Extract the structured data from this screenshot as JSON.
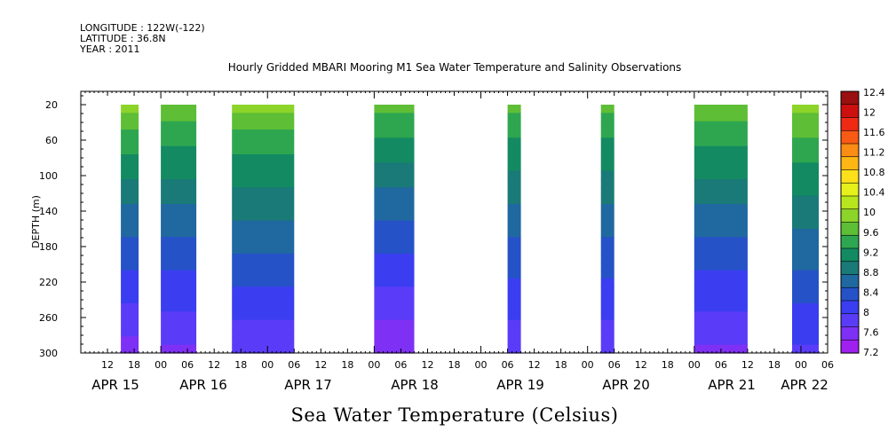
{
  "header": {
    "longitude": "LONGITUDE : 122W(-122)",
    "latitude": "LATITUDE : 36.8N",
    "year": "YEAR : 2011"
  },
  "chart_data": {
    "type": "heatmap",
    "title": "Hourly Gridded MBARI Mooring M1 Sea Water Temperature and Salinity Observations",
    "xlabel": "",
    "ylabel": "DEPTH (m)",
    "colorbar_title": "Sea Water Temperature (Celsius)",
    "y_ticks": [
      20,
      60,
      100,
      140,
      180,
      220,
      260,
      300
    ],
    "ylim": [
      300,
      5
    ],
    "x_hour_ticks": [
      "12",
      "18",
      "00",
      "06",
      "12",
      "18",
      "00",
      "06",
      "12",
      "18",
      "00",
      "06",
      "12",
      "18",
      "00",
      "06",
      "12",
      "18",
      "00",
      "06",
      "12",
      "18",
      "00",
      "06",
      "12",
      "18",
      "00",
      "06"
    ],
    "x_day_labels": [
      "APR 15",
      "APR 16",
      "APR 17",
      "APR 18",
      "APR 19",
      "APR 20",
      "APR 21",
      "APR 22"
    ],
    "x_range_hours": [
      6,
      174
    ],
    "colorbar_levels": [
      "12.4",
      "12",
      "11.6",
      "11.2",
      "10.8",
      "10.4",
      "10",
      "9.6",
      "9.2",
      "8.8",
      "8.4",
      "8",
      "7.6",
      "7.2"
    ],
    "colorbar_colors": [
      "#9a0f0f",
      "#cc1010",
      "#ee2a14",
      "#f95a14",
      "#fb8c14",
      "#fdb614",
      "#fde01a",
      "#e6f01a",
      "#b8e61e",
      "#8cd42a",
      "#5ebe36",
      "#2ea650",
      "#138a62",
      "#1a7a78",
      "#2068a0",
      "#2652c8",
      "#3a3ef0",
      "#5a3cf8",
      "#7e30f4",
      "#a020f0"
    ],
    "data_segments": [
      {
        "start_hour": 15,
        "end_hour": 19,
        "surface_temp": 9.9,
        "bottom_temp": 7.4
      },
      {
        "start_hour": 24,
        "end_hour": 32,
        "surface_temp": 9.8,
        "bottom_temp": 7.5
      },
      {
        "start_hour": 40,
        "end_hour": 54,
        "surface_temp": 9.9,
        "bottom_temp": 7.6
      },
      {
        "start_hour": 72,
        "end_hour": 81,
        "surface_temp": 9.7,
        "bottom_temp": 7.3
      },
      {
        "start_hour": 102,
        "end_hour": 105,
        "surface_temp": 9.7,
        "bottom_temp": 7.6
      },
      {
        "start_hour": 123,
        "end_hour": 126,
        "surface_temp": 9.7,
        "bottom_temp": 7.6
      },
      {
        "start_hour": 144,
        "end_hour": 156,
        "surface_temp": 9.8,
        "bottom_temp": 7.5
      },
      {
        "start_hour": 166,
        "end_hour": 172,
        "surface_temp": 9.9,
        "bottom_temp": 7.8
      }
    ]
  }
}
